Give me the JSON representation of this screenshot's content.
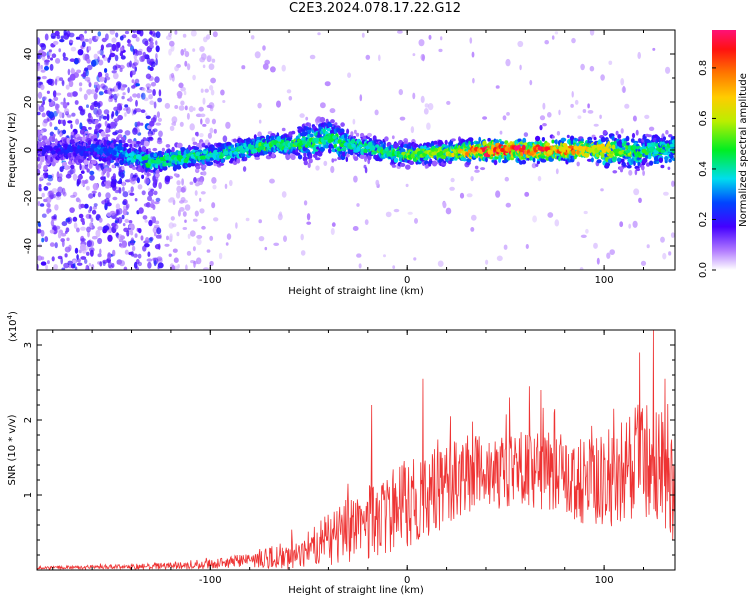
{
  "title": "C2E3.2024.078.17.22.G12",
  "chart_data": [
    {
      "type": "heatmap",
      "xlabel": "Height of straight line (km)",
      "ylabel": "Frequency (Hz)",
      "xlim": [
        -188,
        136
      ],
      "ylim": [
        -50,
        50
      ],
      "xticks": [
        -100,
        0,
        100
      ],
      "yticks": [
        -40,
        -20,
        0,
        20,
        40
      ],
      "colorbar": {
        "label": "Normalized spectral amplitude",
        "range": [
          0.0,
          0.95
        ],
        "ticks": [
          0.0,
          0.2,
          0.4,
          0.6,
          0.8
        ]
      },
      "ridge": {
        "x": [
          -188,
          -150,
          -130,
          -110,
          -90,
          -70,
          -50,
          -40,
          -30,
          -20,
          -10,
          0,
          20,
          40,
          60,
          80,
          100,
          115,
          136
        ],
        "freq_hz": [
          0,
          0,
          -5,
          -3,
          -1,
          2,
          3,
          5,
          2,
          1,
          -1,
          -2,
          -1,
          0,
          0,
          0,
          0,
          -1,
          0
        ],
        "peak_amp": [
          0.2,
          0.3,
          0.5,
          0.45,
          0.45,
          0.5,
          0.5,
          0.5,
          0.45,
          0.45,
          0.5,
          0.55,
          0.6,
          0.9,
          0.95,
          0.8,
          0.7,
          0.5,
          0.45
        ]
      },
      "grid": false
    },
    {
      "type": "line",
      "xlabel": "Height of straight line (km)",
      "ylabel": "SNR (10 * v/v)",
      "y_multiplier_label": "(x10",
      "y_multiplier_exp": "4",
      "y_multiplier_close": ")",
      "xlim": [
        -188,
        136
      ],
      "ylim": [
        0,
        3.2
      ],
      "xticks": [
        -100,
        0,
        100
      ],
      "yticks": [
        1,
        2,
        3
      ],
      "series": [
        {
          "color": "#ee3333",
          "x": [
            -188,
            -150,
            -110,
            -90,
            -75,
            -60,
            -50,
            -40,
            -30,
            -20,
            -10,
            0,
            10,
            20,
            30,
            40,
            60,
            80,
            90,
            100,
            110,
            120,
            130,
            136
          ],
          "mean": [
            0.03,
            0.04,
            0.06,
            0.1,
            0.15,
            0.2,
            0.3,
            0.4,
            0.55,
            0.65,
            0.75,
            0.9,
            1.0,
            1.15,
            1.25,
            1.3,
            1.35,
            1.3,
            1.2,
            1.2,
            1.3,
            1.5,
            1.3,
            1.1
          ],
          "spread": [
            0.02,
            0.03,
            0.05,
            0.08,
            0.12,
            0.2,
            0.25,
            0.35,
            0.45,
            0.5,
            0.55,
            0.6,
            0.6,
            0.55,
            0.55,
            0.5,
            0.5,
            0.55,
            0.6,
            0.65,
            0.7,
            0.8,
            0.85,
            0.85
          ],
          "peaks": [
            [
              -110,
              0.13
            ],
            [
              -75,
              0.28
            ],
            [
              -30,
              1.15
            ],
            [
              -18,
              2.2
            ],
            [
              8,
              2.55
            ],
            [
              22,
              2.05
            ],
            [
              52,
              2.3
            ],
            [
              62,
              2.45
            ],
            [
              68,
              2.4
            ],
            [
              105,
              2.15
            ],
            [
              118,
              2.9
            ],
            [
              125,
              3.2
            ],
            [
              131,
              2.55
            ]
          ]
        }
      ],
      "grid": false
    }
  ]
}
